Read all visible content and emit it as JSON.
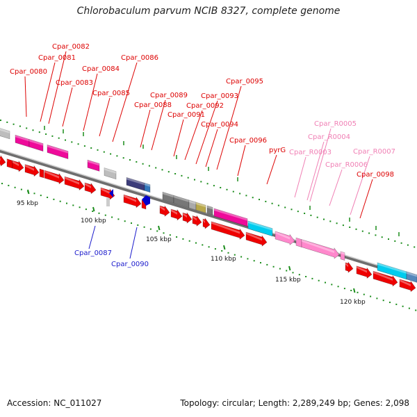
{
  "title": "Chlorobaculum parvum NCIB 8327, complete genome",
  "footer": {
    "accession": "Accession: NC_011027",
    "summary": "Topology: circular; Length: 2,289,249 bp; Genes: 2,098"
  },
  "colors": {
    "red_gene": "#ee0000",
    "blue_gene": "#0000cc",
    "pink_gene": "#ff88cc",
    "label_red": "#dd0000",
    "label_blue": "#1a1acc",
    "label_pink": "#f07fb4",
    "cyan_gene": "#00ccee",
    "magenta_gene": "#ee0a9a",
    "slate_gene": "#3c3c7a",
    "grey_gene": "#777777",
    "tick_green": "#1a8c1a"
  },
  "scale_labels": [
    "95 kbp",
    "100 kbp",
    "105 kbp",
    "110 kbp",
    "115 kbp",
    "120 kbp"
  ],
  "gene_labels": [
    {
      "text": "Cpar_0080",
      "color": "red"
    },
    {
      "text": "Cpar_0081",
      "color": "red"
    },
    {
      "text": "Cpar_0082",
      "color": "red"
    },
    {
      "text": "Cpar_0083",
      "color": "red"
    },
    {
      "text": "Cpar_0084",
      "color": "red"
    },
    {
      "text": "Cpar_0085",
      "color": "red"
    },
    {
      "text": "Cpar_0086",
      "color": "red"
    },
    {
      "text": "Cpar_0087",
      "color": "blue"
    },
    {
      "text": "Cpar_0088",
      "color": "red"
    },
    {
      "text": "Cpar_0089",
      "color": "red"
    },
    {
      "text": "Cpar_0090",
      "color": "blue"
    },
    {
      "text": "Cpar_0091",
      "color": "red"
    },
    {
      "text": "Cpar_0092",
      "color": "red"
    },
    {
      "text": "Cpar_0093",
      "color": "red"
    },
    {
      "text": "Cpar_0094",
      "color": "red"
    },
    {
      "text": "Cpar_0095",
      "color": "red"
    },
    {
      "text": "Cpar_0096",
      "color": "red"
    },
    {
      "text": "pyrG",
      "color": "red"
    },
    {
      "text": "Cpar_R0003",
      "color": "pink"
    },
    {
      "text": "Cpar_R0004",
      "color": "pink"
    },
    {
      "text": "Cpar_R0005",
      "color": "pink"
    },
    {
      "text": "Cpar_R0006",
      "color": "pink"
    },
    {
      "text": "Cpar_R0007",
      "color": "pink"
    },
    {
      "text": "Cpar_0098",
      "color": "red"
    }
  ]
}
